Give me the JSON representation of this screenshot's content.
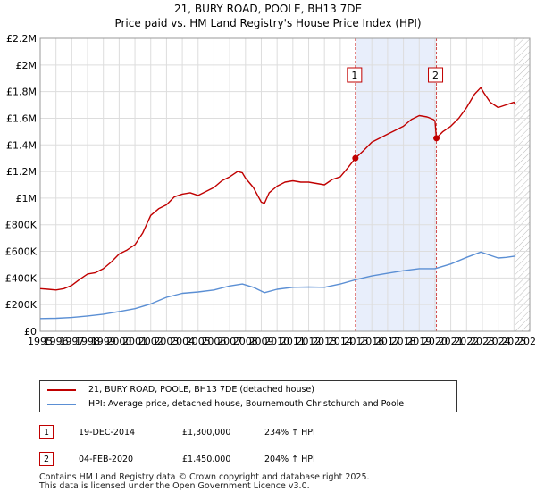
{
  "chart_data": {
    "type": "line",
    "title": "21, BURY ROAD, POOLE, BH13 7DE",
    "subtitle": "Price paid vs. HM Land Registry's House Price Index (HPI)",
    "xlim": [
      1995,
      2026
    ],
    "ylim": [
      0,
      2200000
    ],
    "x_ticks": [
      1995,
      1996,
      1997,
      1998,
      1999,
      2000,
      2001,
      2002,
      2003,
      2004,
      2005,
      2006,
      2007,
      2008,
      2009,
      2010,
      2011,
      2012,
      2013,
      2014,
      2015,
      2016,
      2017,
      2018,
      2019,
      2020,
      2021,
      2022,
      2023,
      2024,
      2025,
      2026
    ],
    "y_ticks": [
      {
        "value": 0,
        "label": "£0"
      },
      {
        "value": 200000,
        "label": "£200K"
      },
      {
        "value": 400000,
        "label": "£400K"
      },
      {
        "value": 600000,
        "label": "£600K"
      },
      {
        "value": 800000,
        "label": "£800K"
      },
      {
        "value": 1000000,
        "label": "£1M"
      },
      {
        "value": 1200000,
        "label": "£1.2M"
      },
      {
        "value": 1400000,
        "label": "£1.4M"
      },
      {
        "value": 1600000,
        "label": "£1.6M"
      },
      {
        "value": 1800000,
        "label": "£1.8M"
      },
      {
        "value": 2000000,
        "label": "£2M"
      },
      {
        "value": 2200000,
        "label": "£2.2M"
      }
    ],
    "grid": true,
    "shaded_region": {
      "from": 2014.96,
      "to": 2020.09,
      "color": "#e8eefb"
    },
    "future_hatch_from": 2025.1,
    "series": [
      {
        "name": "21, BURY ROAD, POOLE, BH13 7DE (detached house)",
        "color": "#c00000",
        "x": [
          1995.0,
          1995.5,
          1996.0,
          1996.5,
          1997.0,
          1997.5,
          1998.0,
          1998.5,
          1999.0,
          1999.5,
          2000.0,
          2000.5,
          2001.0,
          2001.5,
          2002.0,
          2002.5,
          2003.0,
          2003.5,
          2004.0,
          2004.5,
          2005.0,
          2005.5,
          2006.0,
          2006.5,
          2007.0,
          2007.5,
          2007.8,
          2008.0,
          2008.5,
          2009.0,
          2009.2,
          2009.5,
          2010.0,
          2010.5,
          2011.0,
          2011.5,
          2012.0,
          2012.5,
          2013.0,
          2013.5,
          2014.0,
          2014.5,
          2014.96,
          2015.5,
          2016.0,
          2016.5,
          2017.0,
          2017.5,
          2018.0,
          2018.5,
          2019.0,
          2019.5,
          2019.9,
          2020.0,
          2020.09,
          2020.5,
          2021.0,
          2021.5,
          2022.0,
          2022.5,
          2022.9,
          2023.1,
          2023.5,
          2024.0,
          2024.5,
          2025.0,
          2025.1
        ],
        "values": [
          320000,
          315000,
          310000,
          320000,
          345000,
          390000,
          430000,
          440000,
          470000,
          520000,
          580000,
          610000,
          650000,
          740000,
          870000,
          920000,
          950000,
          1010000,
          1030000,
          1040000,
          1020000,
          1050000,
          1080000,
          1130000,
          1160000,
          1200000,
          1190000,
          1150000,
          1080000,
          970000,
          960000,
          1040000,
          1090000,
          1120000,
          1130000,
          1120000,
          1120000,
          1110000,
          1100000,
          1140000,
          1160000,
          1230000,
          1300000,
          1360000,
          1420000,
          1450000,
          1480000,
          1510000,
          1540000,
          1590000,
          1620000,
          1610000,
          1590000,
          1580000,
          1450000,
          1500000,
          1540000,
          1600000,
          1680000,
          1780000,
          1830000,
          1790000,
          1720000,
          1680000,
          1700000,
          1720000,
          1700000
        ]
      },
      {
        "name": "HPI: Average price, detached house, Bournemouth Christchurch and Poole",
        "color": "#5b8fd4",
        "x": [
          1995.0,
          1996.0,
          1997.0,
          1998.0,
          1999.0,
          2000.0,
          2001.0,
          2002.0,
          2003.0,
          2004.0,
          2005.0,
          2006.0,
          2007.0,
          2007.8,
          2008.5,
          2009.2,
          2010.0,
          2011.0,
          2012.0,
          2013.0,
          2014.0,
          2015.0,
          2016.0,
          2017.0,
          2018.0,
          2019.0,
          2020.0,
          2021.0,
          2022.0,
          2022.9,
          2023.5,
          2024.0,
          2024.5,
          2025.1
        ],
        "values": [
          95000,
          97000,
          103000,
          115000,
          128000,
          148000,
          170000,
          205000,
          255000,
          285000,
          295000,
          310000,
          340000,
          355000,
          330000,
          290000,
          315000,
          330000,
          332000,
          330000,
          355000,
          388000,
          415000,
          435000,
          455000,
          470000,
          470000,
          505000,
          555000,
          595000,
          570000,
          550000,
          555000,
          565000
        ]
      }
    ],
    "sales": [
      {
        "marker": "1",
        "date": "19-DEC-2014",
        "price": "£1,300,000",
        "hpi": "234% ↑ HPI",
        "x": 2014.96,
        "value": 1300000
      },
      {
        "marker": "2",
        "date": "04-FEB-2020",
        "price": "£1,450,000",
        "hpi": "204% ↑ HPI",
        "x": 2020.09,
        "value": 1450000
      }
    ]
  },
  "footer": {
    "line1": "Contains HM Land Registry data © Crown copyright and database right 2025.",
    "line2": "This data is licensed under the Open Government Licence v3.0."
  }
}
